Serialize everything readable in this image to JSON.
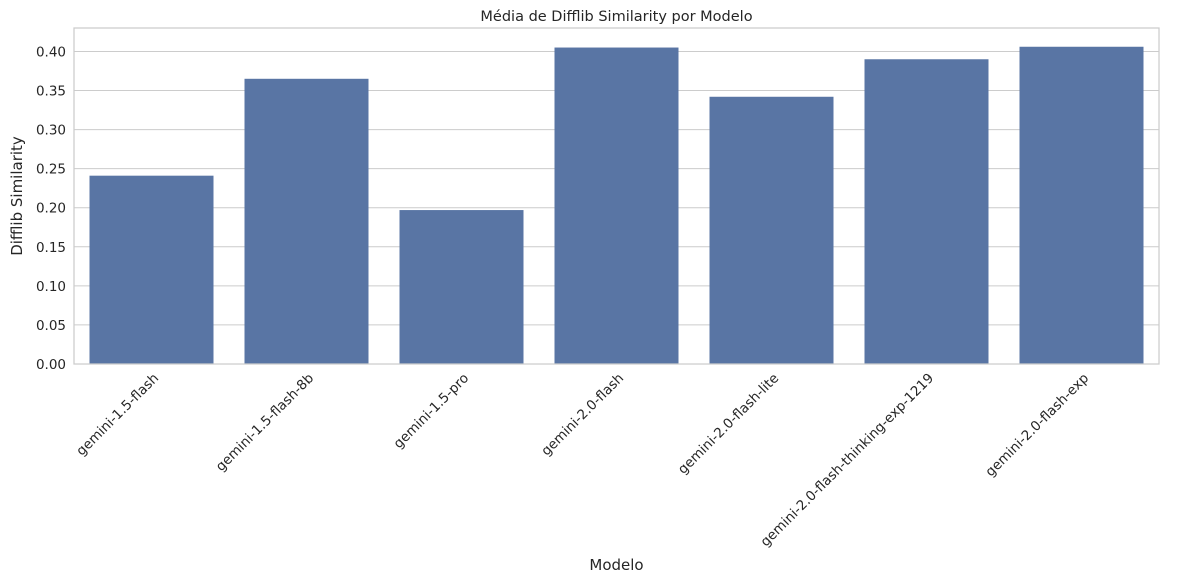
{
  "chart_data": {
    "type": "bar",
    "title": "Média de Difflib Similarity por Modelo",
    "xlabel": "Modelo",
    "ylabel": "Difflib Similarity",
    "categories": [
      "gemini-1.5-flash",
      "gemini-1.5-flash-8b",
      "gemini-1.5-pro",
      "gemini-2.0-flash",
      "gemini-2.0-flash-lite",
      "gemini-2.0-flash-thinking-exp-1219",
      "gemini-2.0-flash-exp"
    ],
    "values": [
      0.241,
      0.365,
      0.197,
      0.405,
      0.342,
      0.39,
      0.406
    ],
    "ylim": [
      0,
      0.43
    ],
    "yticks": [
      0.0,
      0.05,
      0.1,
      0.15,
      0.2,
      0.25,
      0.3,
      0.35,
      0.4
    ],
    "ytick_labels": [
      "0.00",
      "0.05",
      "0.10",
      "0.15",
      "0.20",
      "0.25",
      "0.30",
      "0.35",
      "0.40"
    ],
    "xtick_rotation_deg": 45,
    "grid": "horizontal",
    "legend": "none",
    "colors": {
      "bar": "#5975a4",
      "grid": "#cccccc",
      "axes_edge": "#cccccc",
      "text": "#262626"
    }
  }
}
